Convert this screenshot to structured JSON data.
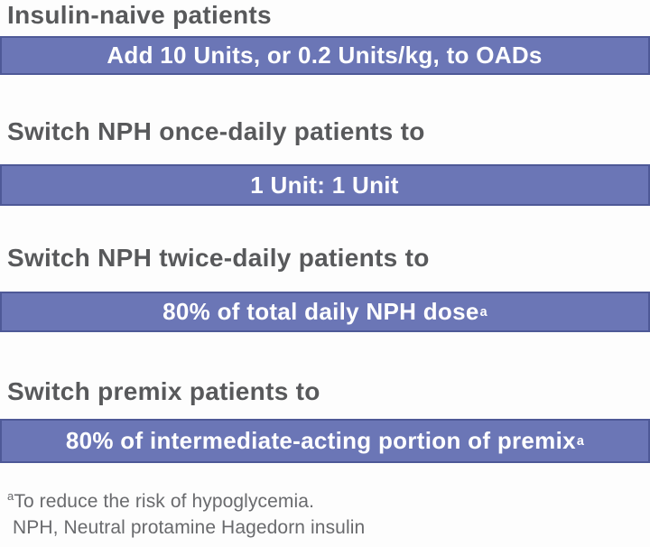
{
  "colors": {
    "page_bg": "#fdfdfd",
    "banner_bg": "#6b76b6",
    "banner_border": "#4e5997",
    "banner_text": "#ffffff",
    "heading_text": "#58595b",
    "footnote_text": "#696a6d"
  },
  "sections": [
    {
      "heading": "Insulin-naive patients",
      "banner": "Add 10 Units, or 0.2 Units/kg, to OADs",
      "sup": ""
    },
    {
      "heading": "Switch NPH once-daily patients to",
      "banner": "1 Unit: 1 Unit",
      "sup": ""
    },
    {
      "heading": "Switch NPH twice-daily patients to",
      "banner": "80% of total daily NPH dose",
      "sup": "a"
    },
    {
      "heading": "Switch premix patients to",
      "banner": "80% of intermediate-acting portion of premix",
      "sup": "a"
    }
  ],
  "footnotes": [
    {
      "sup": "a",
      "text": "To reduce the risk of hypoglycemia."
    },
    {
      "sup": "",
      "text": "NPH, Neutral protamine Hagedorn insulin"
    }
  ]
}
